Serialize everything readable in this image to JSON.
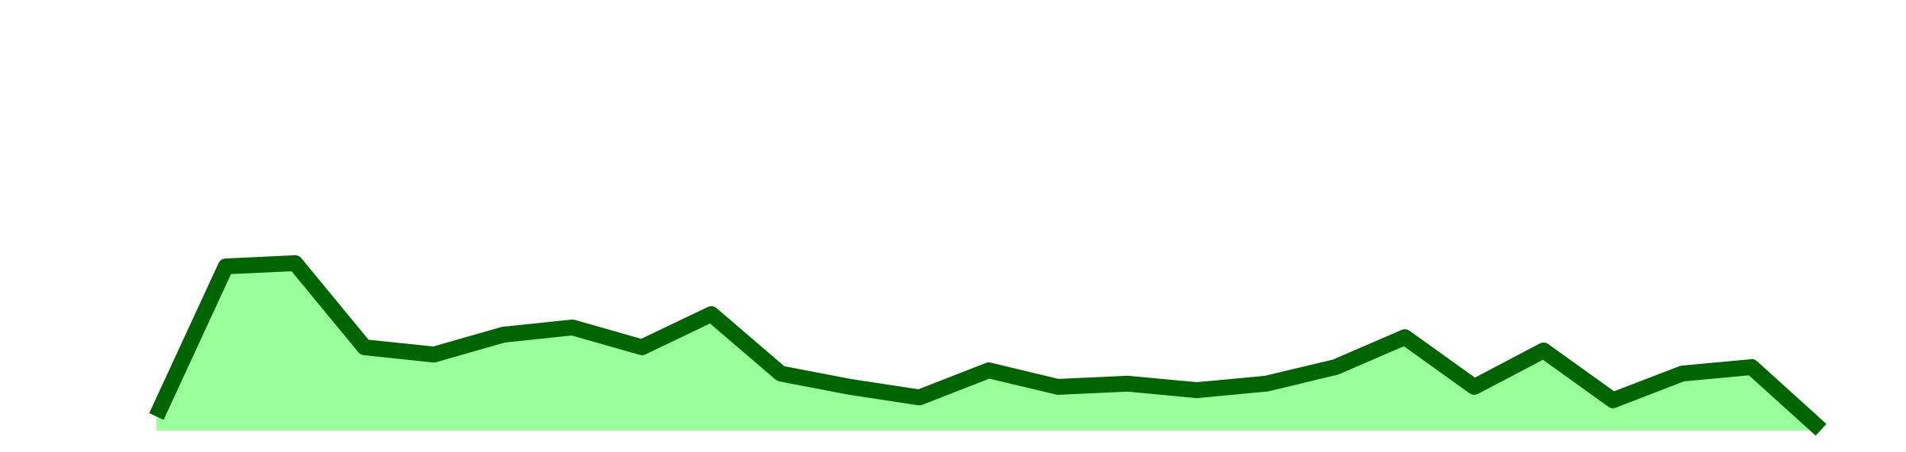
{
  "chart_data": {
    "type": "area",
    "x": [
      0,
      1,
      2,
      3,
      4,
      5,
      6,
      7,
      8,
      9,
      10,
      11,
      12,
      13,
      14,
      15,
      16,
      17,
      18,
      19,
      20,
      21,
      22,
      23,
      24
    ],
    "values": [
      3.5,
      40.6,
      41.4,
      20.6,
      18.8,
      23.7,
      25.5,
      20.6,
      28.8,
      14.1,
      10.8,
      8.2,
      14.9,
      10.8,
      11.6,
      10.0,
      11.6,
      15.7,
      23.1,
      10.8,
      19.8,
      7.5,
      14.1,
      15.7,
      0.2
    ],
    "color": "#006400",
    "fill": "#99ff99",
    "xlim": [
      0,
      24
    ],
    "ylim": [
      0,
      100
    ]
  }
}
